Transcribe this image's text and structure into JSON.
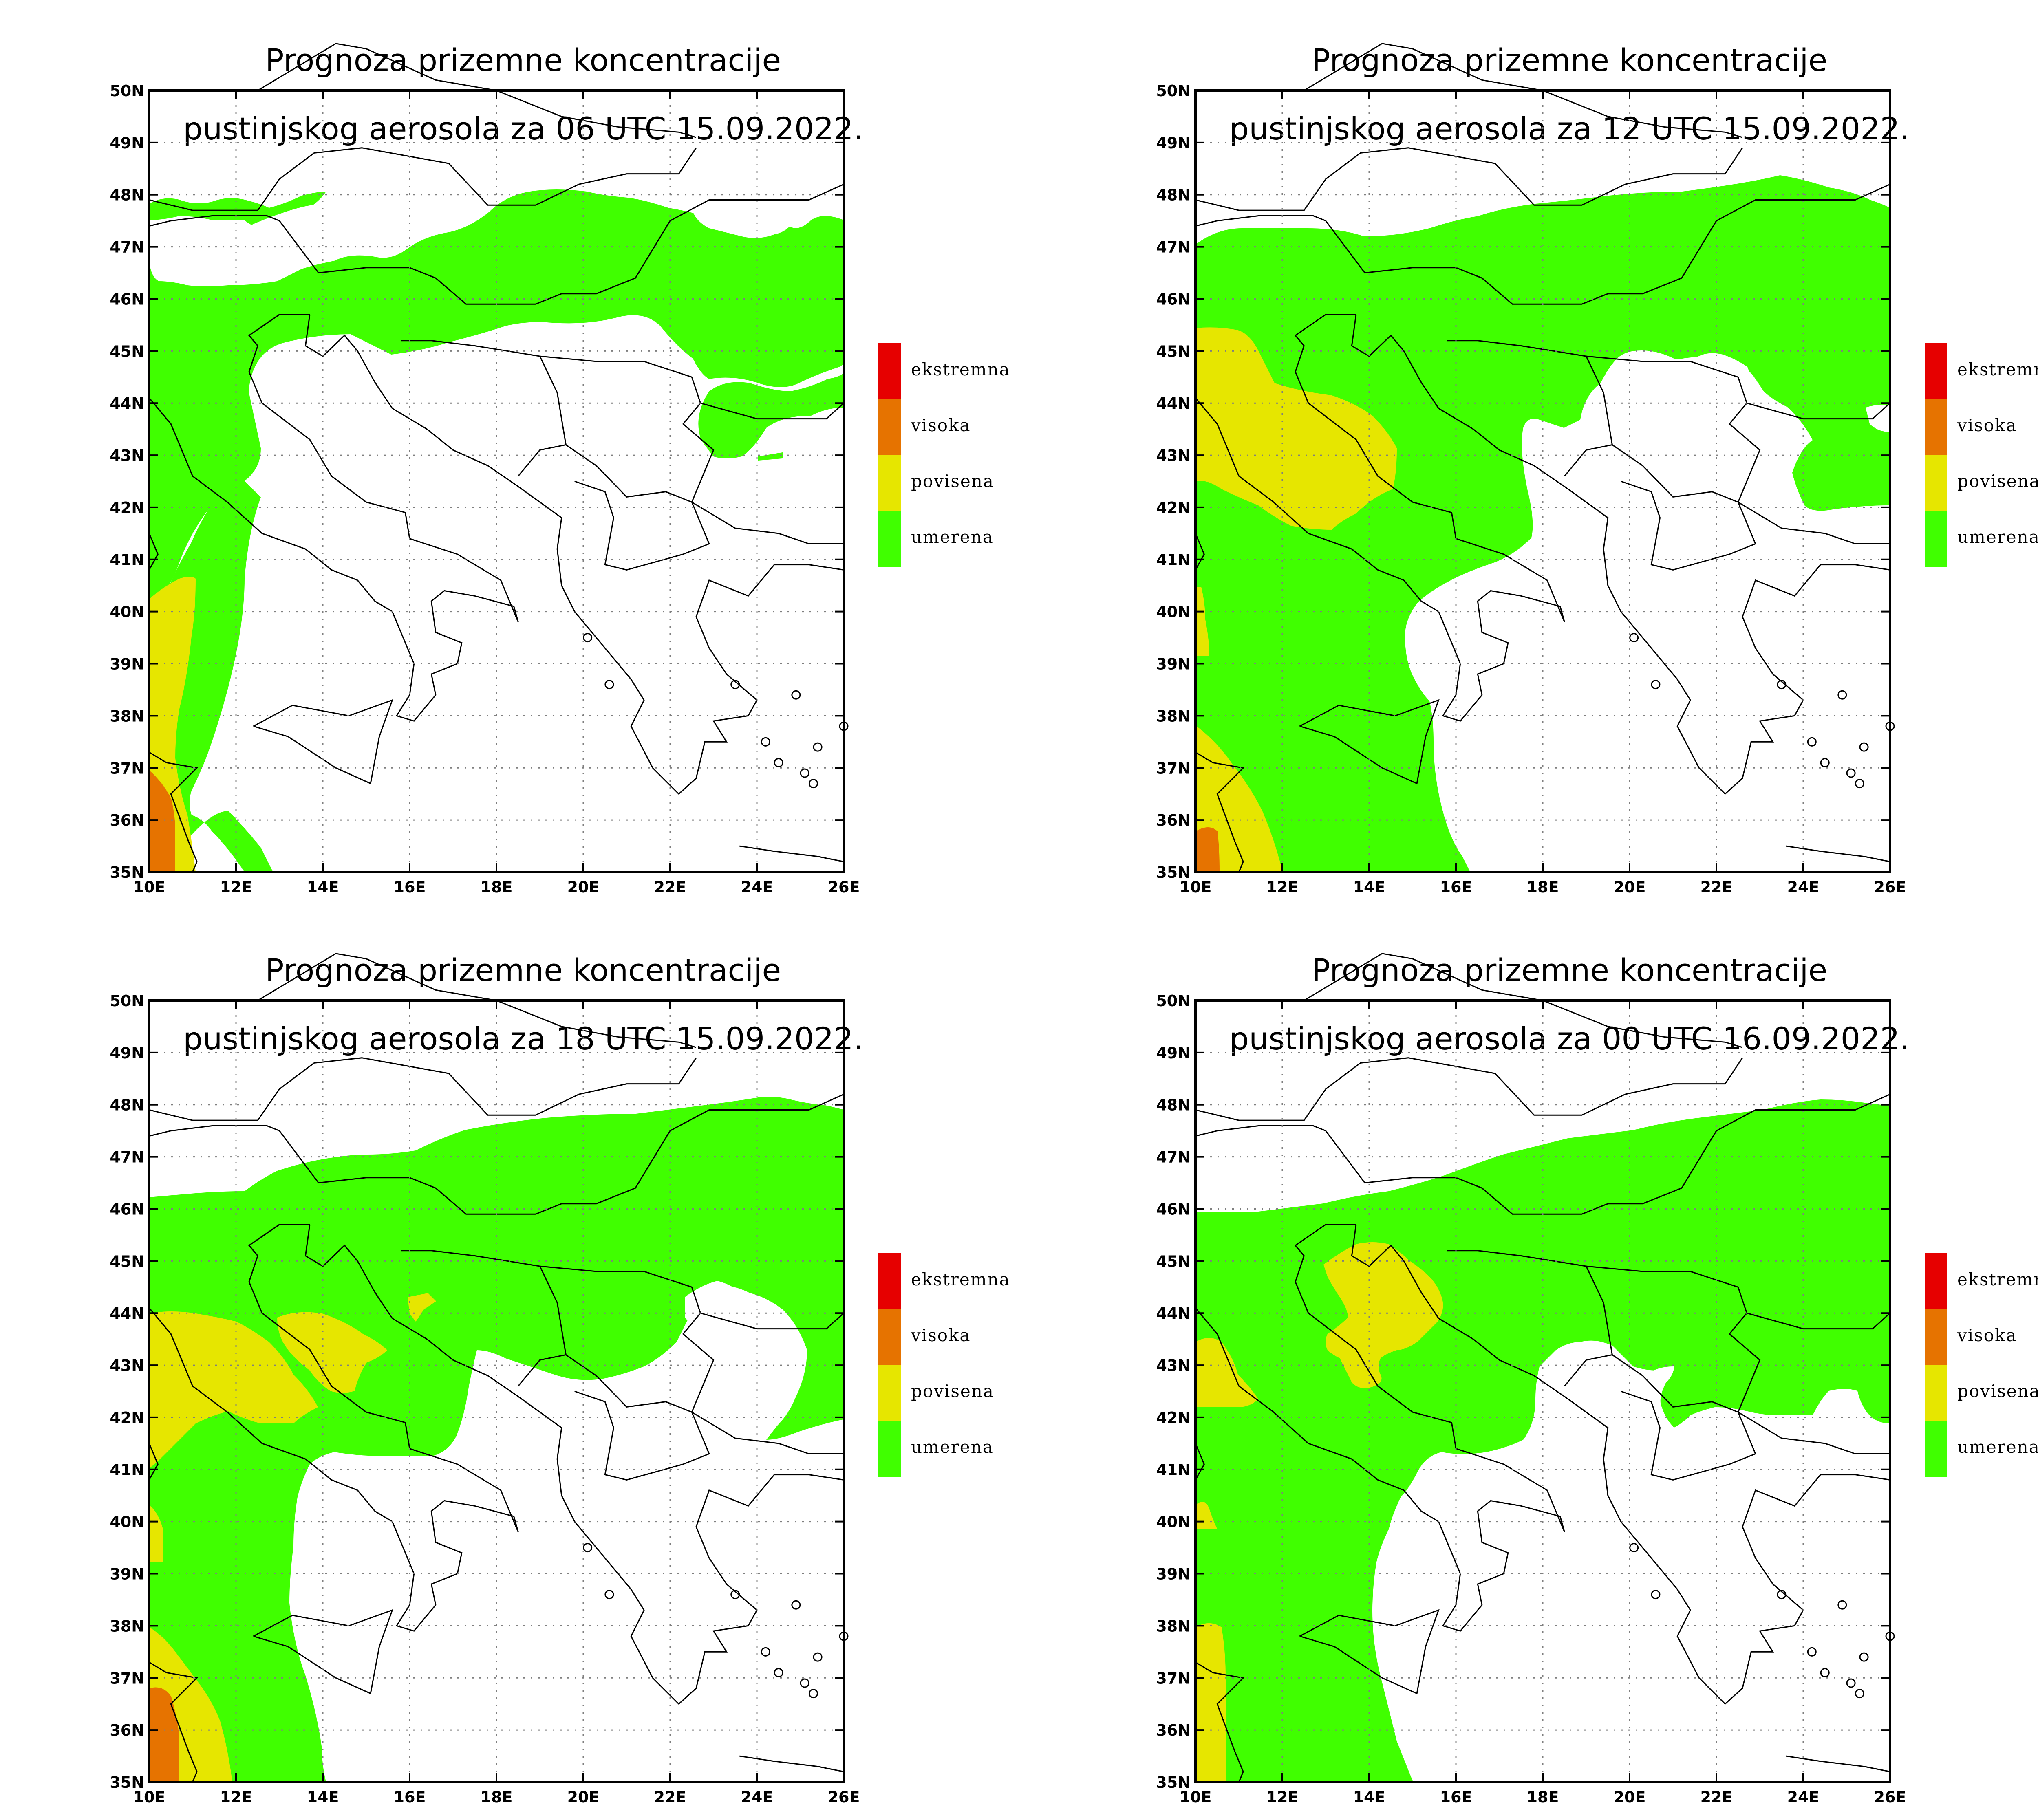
{
  "colors": {
    "umerena": "#40ff00",
    "povisena": "#e6e600",
    "visoka": "#e67300",
    "ekstremna": "#e60000",
    "frame": "#000000",
    "grid": "#7f7f7f"
  },
  "legend": [
    {
      "label": "ekstremna",
      "color": "#e60000"
    },
    {
      "label": "visoka",
      "color": "#e67300"
    },
    {
      "label": "povisena",
      "color": "#e6e600"
    },
    {
      "label": "umerena",
      "color": "#40ff00"
    }
  ],
  "axes": {
    "lat_labels": [
      "50N",
      "49N",
      "48N",
      "47N",
      "46N",
      "45N",
      "44N",
      "43N",
      "42N",
      "41N",
      "40N",
      "39N",
      "38N",
      "37N",
      "36N",
      "35N"
    ],
    "lon_labels": [
      "10E",
      "12E",
      "14E",
      "16E",
      "18E",
      "20E",
      "22E",
      "24E",
      "26E"
    ]
  },
  "panels": [
    {
      "title_line1": "Prognoza prizemne koncentracije",
      "title_line2": "pustinjskog aerosola za 06 UTC 15.09.2022."
    },
    {
      "title_line1": "Prognoza prizemne koncentracije",
      "title_line2": "pustinjskog aerosola za 12 UTC 15.09.2022."
    },
    {
      "title_line1": "Prognoza prizemne koncentracije",
      "title_line2": "pustinjskog aerosola za 18 UTC 15.09.2022."
    },
    {
      "title_line1": "Prognoza prizemne koncentracije",
      "title_line2": "pustinjskog aerosola za 00 UTC 16.09.2022."
    }
  ]
}
